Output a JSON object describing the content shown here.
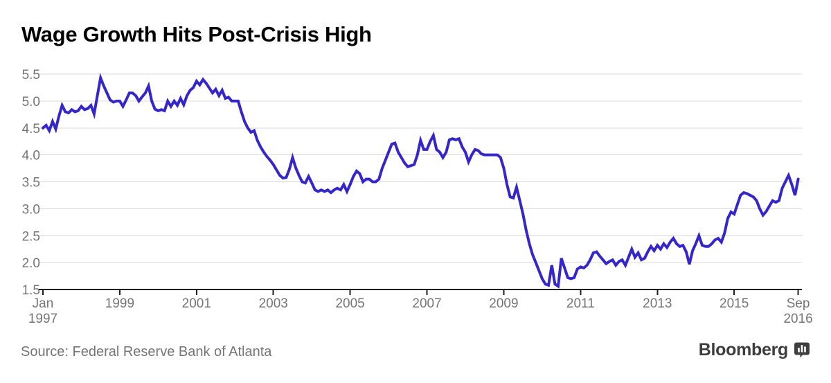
{
  "header": {
    "title": "Wage Growth Hits Post-Crisis High"
  },
  "footer": {
    "source": "Source: Federal Reserve Bank of Atlanta",
    "brand": "Bloomberg",
    "brand_icon": "bar-chart-bubble-icon"
  },
  "chart_data": {
    "type": "line",
    "title": "Wage Growth Hits Post-Crisis High",
    "frequency": "monthly",
    "x_start": "Jan 1997",
    "x_end": "Sep 2016",
    "x_first_label": {
      "line1": "Jan",
      "line2": "1997"
    },
    "x_last_label": {
      "line1": "Sep",
      "line2": "2016"
    },
    "x_year_ticks": [
      1999,
      2001,
      2003,
      2005,
      2007,
      2009,
      2011,
      2013,
      2015
    ],
    "y_ticks": [
      1.5,
      2.0,
      2.5,
      3.0,
      3.5,
      4.0,
      4.5,
      5.0,
      5.5
    ],
    "ylim": [
      1.5,
      5.5
    ],
    "grid": "horizontal",
    "legend": "none",
    "line_color": "#3526c9",
    "grid_color": "#d8d8d8",
    "axis_color": "#1f1f1f",
    "label_color": "#757575",
    "series": [
      {
        "name": "wage-growth-percent",
        "start": "1997-01",
        "end": "2016-09",
        "values": [
          4.5,
          4.55,
          4.45,
          4.62,
          4.48,
          4.72,
          4.92,
          4.8,
          4.78,
          4.84,
          4.8,
          4.82,
          4.9,
          4.84,
          4.86,
          4.92,
          4.76,
          5.1,
          5.43,
          5.28,
          5.15,
          5.02,
          4.98,
          5.0,
          5.0,
          4.9,
          5.02,
          5.15,
          5.15,
          5.1,
          5.0,
          5.08,
          5.15,
          5.28,
          5.0,
          4.85,
          4.82,
          4.84,
          4.82,
          5.0,
          4.9,
          5.0,
          4.92,
          5.05,
          4.93,
          5.1,
          5.2,
          5.25,
          5.37,
          5.3,
          5.4,
          5.33,
          5.24,
          5.15,
          5.22,
          5.1,
          5.2,
          5.05,
          5.07,
          5.0,
          5.0,
          5.0,
          4.8,
          4.62,
          4.5,
          4.42,
          4.45,
          4.27,
          4.15,
          4.05,
          3.97,
          3.9,
          3.82,
          3.72,
          3.62,
          3.57,
          3.58,
          3.73,
          3.95,
          3.76,
          3.62,
          3.5,
          3.48,
          3.6,
          3.48,
          3.35,
          3.32,
          3.35,
          3.32,
          3.35,
          3.3,
          3.35,
          3.38,
          3.35,
          3.45,
          3.32,
          3.45,
          3.6,
          3.7,
          3.65,
          3.5,
          3.55,
          3.55,
          3.5,
          3.5,
          3.55,
          3.75,
          3.9,
          4.05,
          4.2,
          4.22,
          4.05,
          3.95,
          3.85,
          3.78,
          3.8,
          3.82,
          4.0,
          4.27,
          4.1,
          4.1,
          4.25,
          4.36,
          4.1,
          4.05,
          3.95,
          4.05,
          4.28,
          4.3,
          4.28,
          4.3,
          4.15,
          4.05,
          3.87,
          4.0,
          4.1,
          4.08,
          4.02,
          4.0,
          4.0,
          4.0,
          4.0,
          4.0,
          3.95,
          3.75,
          3.45,
          3.22,
          3.2,
          3.4,
          3.15,
          2.9,
          2.6,
          2.35,
          2.15,
          2.0,
          1.85,
          1.7,
          1.6,
          1.58,
          1.95,
          1.6,
          1.56,
          2.08,
          1.9,
          1.72,
          1.7,
          1.72,
          1.88,
          1.92,
          1.9,
          1.95,
          2.05,
          2.18,
          2.2,
          2.12,
          2.05,
          1.98,
          2.02,
          2.05,
          1.95,
          2.02,
          2.05,
          1.95,
          2.1,
          2.25,
          2.1,
          2.18,
          2.05,
          2.08,
          2.2,
          2.3,
          2.22,
          2.32,
          2.25,
          2.35,
          2.28,
          2.38,
          2.45,
          2.35,
          2.3,
          2.32,
          2.2,
          1.97,
          2.22,
          2.35,
          2.5,
          2.32,
          2.3,
          2.3,
          2.35,
          2.42,
          2.45,
          2.38,
          2.55,
          2.82,
          2.94,
          2.9,
          3.08,
          3.25,
          3.3,
          3.28,
          3.25,
          3.22,
          3.15,
          3.0,
          2.88,
          2.95,
          3.05,
          3.15,
          3.12,
          3.15,
          3.38,
          3.5,
          3.62,
          3.45,
          3.25,
          3.55
        ]
      }
    ]
  }
}
